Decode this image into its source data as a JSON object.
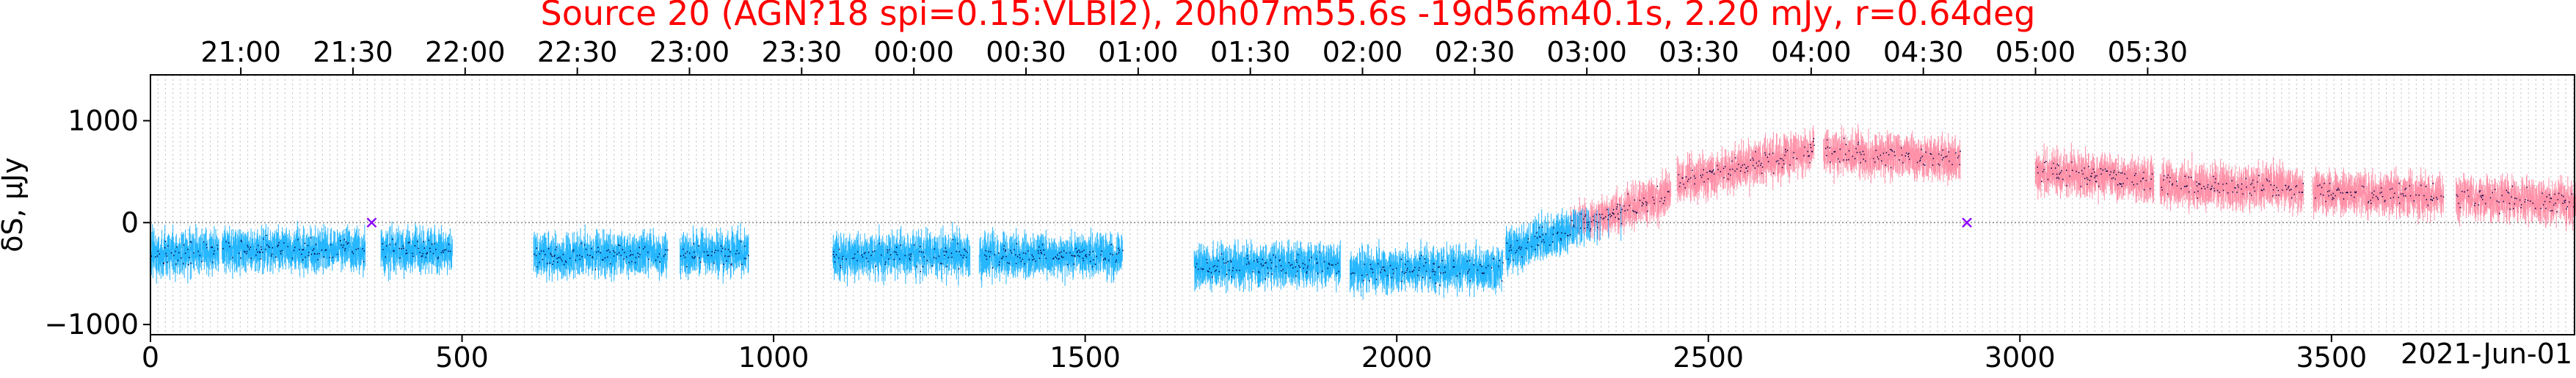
{
  "chart_data": {
    "type": "scatter",
    "title": "Source 20 (AGN?18 spi=0.15:VLBI2), 20h07m55.6s -19d56m40.1s, 2.20 mJy, r=0.64deg",
    "title_color": "#ff0000",
    "ylabel": "δS, μJy",
    "xlabel": "",
    "date_label": "2021-Jun-01",
    "xlim": [
      0,
      3890
    ],
    "ylim": [
      -1100,
      1450
    ],
    "yticks": [
      -1000,
      0,
      1000
    ],
    "ytick_labels": [
      "−1000",
      "0",
      "1000"
    ],
    "xticks": [
      0,
      500,
      1000,
      1500,
      2000,
      2500,
      3000,
      3500
    ],
    "top_ticks": [
      {
        "x": 145,
        "label": "21:00"
      },
      {
        "x": 325,
        "label": "21:30"
      },
      {
        "x": 505,
        "label": "22:00"
      },
      {
        "x": 685,
        "label": "22:30"
      },
      {
        "x": 865,
        "label": "23:00"
      },
      {
        "x": 1045,
        "label": "23:30"
      },
      {
        "x": 1225,
        "label": "00:00"
      },
      {
        "x": 1405,
        "label": "00:30"
      },
      {
        "x": 1585,
        "label": "01:00"
      },
      {
        "x": 1765,
        "label": "01:30"
      },
      {
        "x": 1945,
        "label": "02:00"
      },
      {
        "x": 2125,
        "label": "02:30"
      },
      {
        "x": 2305,
        "label": "03:00"
      },
      {
        "x": 2485,
        "label": "03:30"
      },
      {
        "x": 2665,
        "label": "04:00"
      },
      {
        "x": 2845,
        "label": "04:30"
      },
      {
        "x": 3025,
        "label": "05:00"
      },
      {
        "x": 3205,
        "label": "05:30"
      }
    ],
    "zero_line": true,
    "scan_gridlines": true,
    "colors": {
      "pos_error": "#ff7f9a",
      "neg_error": "#00aaff",
      "point": "#000044",
      "marker_x": "#8b00ff"
    },
    "segments": [
      {
        "x": [
          0,
          110
        ],
        "y": [
          -300,
          -300
        ]
      },
      {
        "x": [
          115,
          345
        ],
        "y": [
          -270,
          -270
        ]
      },
      {
        "x": [
          370,
          485
        ],
        "y": [
          -280,
          -270
        ]
      },
      {
        "x": [
          615,
          830
        ],
        "y": [
          -330,
          -310
        ]
      },
      {
        "x": [
          850,
          960
        ],
        "y": [
          -300,
          -300
        ]
      },
      {
        "x": [
          1095,
          1315
        ],
        "y": [
          -330,
          -310
        ]
      },
      {
        "x": [
          1330,
          1560
        ],
        "y": [
          -340,
          -320
        ]
      },
      {
        "x": [
          1675,
          1910
        ],
        "y": [
          -430,
          -420
        ]
      },
      {
        "x": [
          1925,
          2170
        ],
        "y": [
          -470,
          -450
        ]
      },
      {
        "x": [
          2175,
          2440
        ],
        "y": [
          -300,
          300
        ]
      },
      {
        "x": [
          2450,
          2670
        ],
        "y": [
          400,
          720
        ]
      },
      {
        "x": [
          2685,
          2905
        ],
        "y": [
          700,
          620
        ]
      },
      {
        "x": [
          3025,
          3215
        ],
        "y": [
          500,
          420
        ]
      },
      {
        "x": [
          3225,
          3455
        ],
        "y": [
          380,
          320
        ]
      },
      {
        "x": [
          3470,
          3680
        ],
        "y": [
          300,
          260
        ]
      },
      {
        "x": [
          3700,
          3920
        ],
        "y": [
          250,
          180
        ]
      }
    ],
    "x_markers": [
      {
        "x": 355,
        "y": 0
      },
      {
        "x": 2915,
        "y": 0
      }
    ]
  }
}
